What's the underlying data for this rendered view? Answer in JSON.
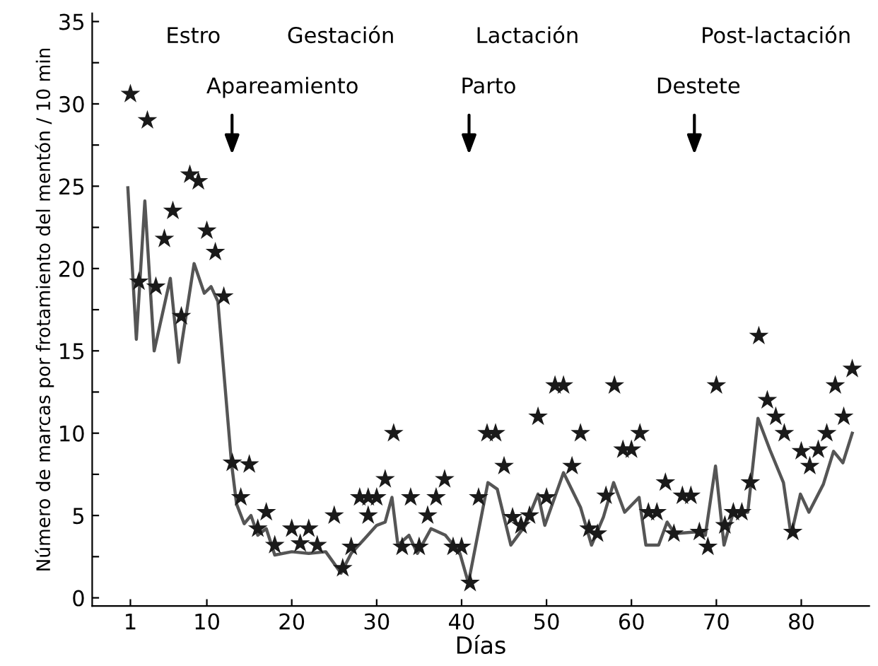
{
  "chart_data": {
    "type": "scatter",
    "xlabel": "Días",
    "ylabel": "Número de marcas por frotamiento del mentón / 10 min",
    "xlim": [
      -3.5,
      88
    ],
    "xticks": [
      1,
      10,
      20,
      30,
      40,
      50,
      60,
      70,
      80
    ],
    "ylim": [
      -0.5,
      35.5
    ],
    "yticks": [
      0,
      {
        "value": 2.5,
        "label": null
      },
      5,
      {
        "value": 7.5,
        "label": null
      },
      10,
      {
        "value": 12.5,
        "label": null
      },
      15,
      {
        "value": 17.5,
        "label": null
      },
      20,
      {
        "value": 22.5,
        "label": null
      },
      25,
      {
        "value": 27.5,
        "label": null
      },
      30,
      {
        "value": 32.5,
        "label": null
      },
      35
    ],
    "grid": false,
    "legend": false,
    "annotations": [
      "Estro",
      "Gestación",
      "Lactación",
      "Post-lactación",
      "Apareamiento",
      "Parto",
      "Destete"
    ],
    "series": [
      {
        "marker": "star",
        "color": "#1a1a1a",
        "x": [
          1,
          2,
          3,
          4,
          5,
          6,
          7,
          8,
          9,
          10,
          11,
          12,
          13,
          14,
          15,
          16,
          17,
          18,
          20,
          21,
          22,
          23,
          25,
          26,
          27,
          28,
          29,
          29,
          30,
          31,
          32,
          33,
          34,
          35,
          36,
          37,
          38,
          39,
          40,
          41,
          42,
          43,
          44,
          45,
          46,
          47,
          48,
          49,
          50,
          51,
          52,
          53,
          54,
          55,
          56,
          57,
          58,
          59,
          60,
          61,
          62,
          63,
          64,
          65,
          66,
          67,
          68,
          69,
          70,
          71,
          72,
          73,
          74,
          75,
          76,
          77,
          78,
          79,
          80,
          81,
          82,
          83,
          84,
          85,
          86
        ],
        "values": [
          30.6,
          19.2,
          29,
          18.9,
          21.8,
          23.5,
          17.1,
          25.7,
          25.3,
          22.3,
          21,
          18.3,
          8.2,
          6.1,
          8.1,
          4.2,
          5.2,
          3.2,
          4.2,
          3.3,
          4.2,
          3.2,
          5,
          1.8,
          3.1,
          6.1,
          5,
          6.1,
          6.1,
          7.2,
          10,
          3.1,
          6.1,
          3.1,
          5,
          6.1,
          7.2,
          3.1,
          3.1,
          0.9,
          6.1,
          10,
          10,
          8,
          4.9,
          4.4,
          5,
          11,
          6.1,
          12.9,
          12.9,
          8,
          10,
          4.2,
          3.9,
          6.2,
          12.9,
          9,
          9,
          10,
          5.2,
          5.2,
          7,
          3.9,
          6.2,
          6.2,
          4,
          3.1,
          12.9,
          4.4,
          5.2,
          5.2,
          7,
          15.9,
          12,
          11,
          10,
          4,
          8.9,
          8,
          9,
          10,
          12.9,
          11,
          13.9
        ]
      },
      {
        "type": "line",
        "color": "#555555",
        "line_style": "solid",
        "x": [
          0.7,
          1.7,
          2.7,
          3.8,
          5.7,
          6.7,
          8.5,
          9.7,
          10.5,
          11.3,
          12.9,
          13.5,
          14.4,
          15.2,
          16,
          17,
          18,
          20,
          22,
          24,
          25.8,
          27,
          28.6,
          30,
          31,
          31.8,
          32.5,
          33.8,
          34.8,
          36.4,
          38.1,
          39.8,
          40.8,
          43.1,
          44.2,
          45.8,
          47.5,
          49,
          49.8,
          52,
          54,
          55.3,
          56.7,
          57.9,
          59.2,
          60.9,
          61.7,
          63.2,
          64.2,
          65.1,
          67.4,
          68.7,
          69.9,
          70.9,
          72,
          73.7,
          74.9,
          76.3,
          77.9,
          78.8,
          79.9,
          80.9,
          82.6,
          83.8,
          84.9,
          86
        ],
        "values": [
          24.9,
          15.7,
          24.1,
          15,
          19.4,
          14.3,
          20.3,
          18.5,
          18.9,
          18,
          8.2,
          5.7,
          4.5,
          5,
          3.8,
          4.2,
          2.6,
          2.8,
          2.7,
          2.8,
          1.5,
          2.7,
          3.6,
          4.4,
          4.6,
          6.1,
          3.2,
          3.8,
          2.7,
          4.2,
          3.8,
          2.7,
          0.9,
          7,
          6.6,
          3.2,
          4.4,
          6.3,
          4.4,
          7.6,
          5.5,
          3.2,
          4.9,
          7,
          5.2,
          6.1,
          3.2,
          3.2,
          4.6,
          3.9,
          4,
          3.8,
          8,
          3.2,
          5.2,
          5.2,
          10.9,
          9,
          7,
          3.8,
          6.3,
          5.2,
          6.9,
          8.9,
          8.2,
          10
        ]
      }
    ]
  }
}
